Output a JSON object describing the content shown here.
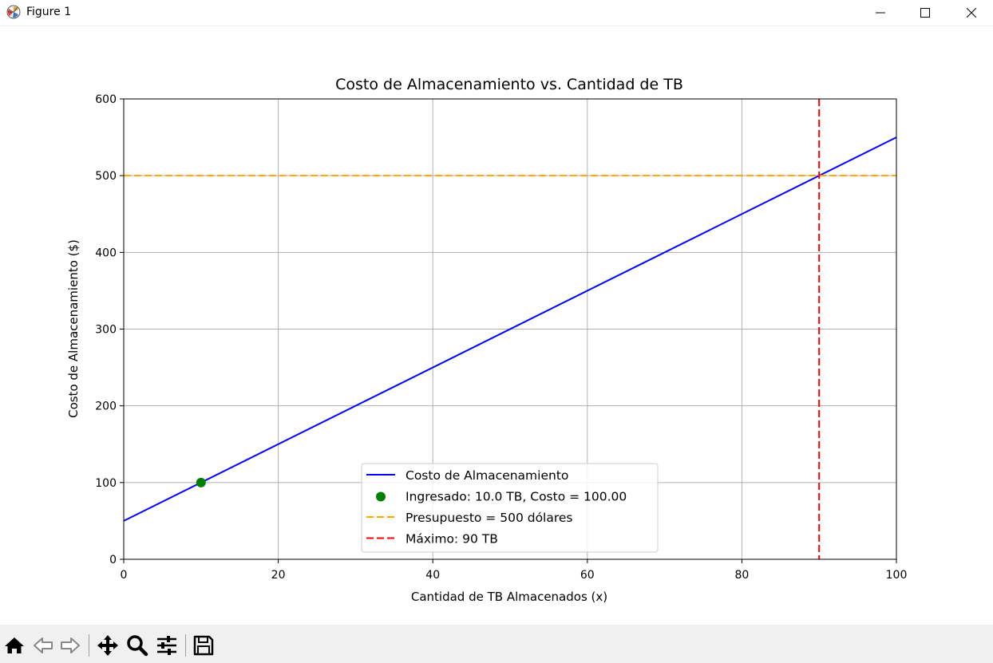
{
  "window": {
    "title": "Figure 1",
    "controls": [
      "minimize",
      "maximize",
      "close"
    ]
  },
  "toolbar": {
    "buttons": [
      "home-icon",
      "back-icon",
      "forward-icon",
      "pan-icon",
      "zoom-icon",
      "configure-subplots-icon",
      "save-icon"
    ]
  },
  "chart_data": {
    "type": "line",
    "title": "Costo de Almacenamiento vs. Cantidad de TB",
    "xlabel": "Cantidad de TB Almacenados (x)",
    "ylabel": "Costo de Almacenamiento ($)",
    "xlim": [
      0,
      100
    ],
    "ylim": [
      0,
      600
    ],
    "xticks": [
      0,
      20,
      40,
      60,
      80,
      100
    ],
    "yticks": [
      0,
      100,
      200,
      300,
      400,
      500,
      600
    ],
    "grid": true,
    "legend_position": "lower-center",
    "series": [
      {
        "name": "Costo de Almacenamiento",
        "kind": "line",
        "style": "solid",
        "color": "#0000ff",
        "x": [
          0,
          100
        ],
        "y": [
          50,
          550
        ]
      },
      {
        "name": "Ingresado: 10.0 TB, Costo = 100.00",
        "kind": "point",
        "color": "#008000",
        "x": [
          10
        ],
        "y": [
          100
        ]
      },
      {
        "name": "Presupuesto = 500 dólares",
        "kind": "hline",
        "style": "dashed",
        "color": "#ffa500",
        "y": 500
      },
      {
        "name": "Máximo: 90 TB",
        "kind": "vline",
        "style": "dashed",
        "color": "#ff0000",
        "x": 90
      }
    ]
  }
}
